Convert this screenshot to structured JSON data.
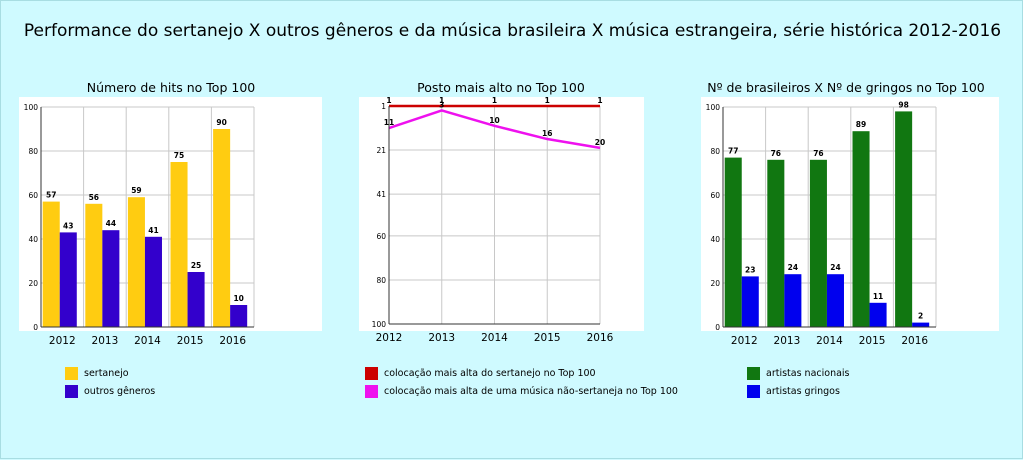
{
  "title": "Performance do sertanejo X outros gêneros e da música brasileira X música estrangeira, série histórica 2012-2016",
  "chart_data": [
    {
      "type": "bar",
      "title": "Número de hits no Top 100",
      "categories": [
        "2012",
        "2013",
        "2014",
        "2015",
        "2016"
      ],
      "ylim": [
        0,
        100
      ],
      "yticks": [
        "0",
        "20",
        "40",
        "60",
        "80",
        "100"
      ],
      "grid": true,
      "legend_position": "bottom",
      "series": [
        {
          "name": "sertanejo",
          "color": "#ffcc11",
          "values": [
            57,
            56,
            59,
            75,
            90
          ],
          "labels": [
            "57",
            "56",
            "59",
            "75",
            "90"
          ]
        },
        {
          "name": "outros gêneros",
          "color": "#3300cc",
          "values": [
            43,
            44,
            41,
            25,
            10
          ],
          "labels": [
            "43",
            "44",
            "41",
            "25",
            "10"
          ]
        }
      ]
    },
    {
      "type": "line",
      "title": "Posto mais alto no Top 100",
      "categories": [
        "2012",
        "2013",
        "2014",
        "2015",
        "2016"
      ],
      "ylim": [
        1,
        100
      ],
      "y_inverted": true,
      "yticks": [
        "1",
        "21",
        "41",
        "60",
        "80",
        "100"
      ],
      "grid": true,
      "legend_position": "bottom",
      "series": [
        {
          "name": "colocação mais alta do sertanejo no Top 100",
          "color": "#cc0000",
          "values": [
            1,
            1,
            1,
            1,
            1
          ],
          "labels": [
            "1",
            "1",
            "1",
            "1",
            "1"
          ]
        },
        {
          "name": "colocação mais alta de uma música não-sertaneja no Top 100",
          "color": "#ee11ee",
          "values": [
            11,
            3,
            10,
            16,
            20
          ],
          "labels": [
            "11",
            "3",
            "10",
            "16",
            "20"
          ]
        }
      ]
    },
    {
      "type": "bar",
      "title": "Nº de brasileiros X  Nº de gringos no Top 100",
      "categories": [
        "2012",
        "2013",
        "2014",
        "2015",
        "2016"
      ],
      "ylim": [
        0,
        100
      ],
      "yticks": [
        "0",
        "20",
        "40",
        "60",
        "80",
        "100"
      ],
      "grid": true,
      "legend_position": "bottom",
      "series": [
        {
          "name": "artistas nacionais",
          "color": "#117711",
          "values": [
            77,
            76,
            76,
            89,
            98
          ],
          "labels": [
            "77",
            "76",
            "76",
            "89",
            "98"
          ]
        },
        {
          "name": "artistas gringos",
          "color": "#0000ee",
          "values": [
            23,
            24,
            24,
            11,
            2
          ],
          "labels": [
            "23",
            "24",
            "24",
            "11",
            "2"
          ]
        }
      ]
    }
  ]
}
